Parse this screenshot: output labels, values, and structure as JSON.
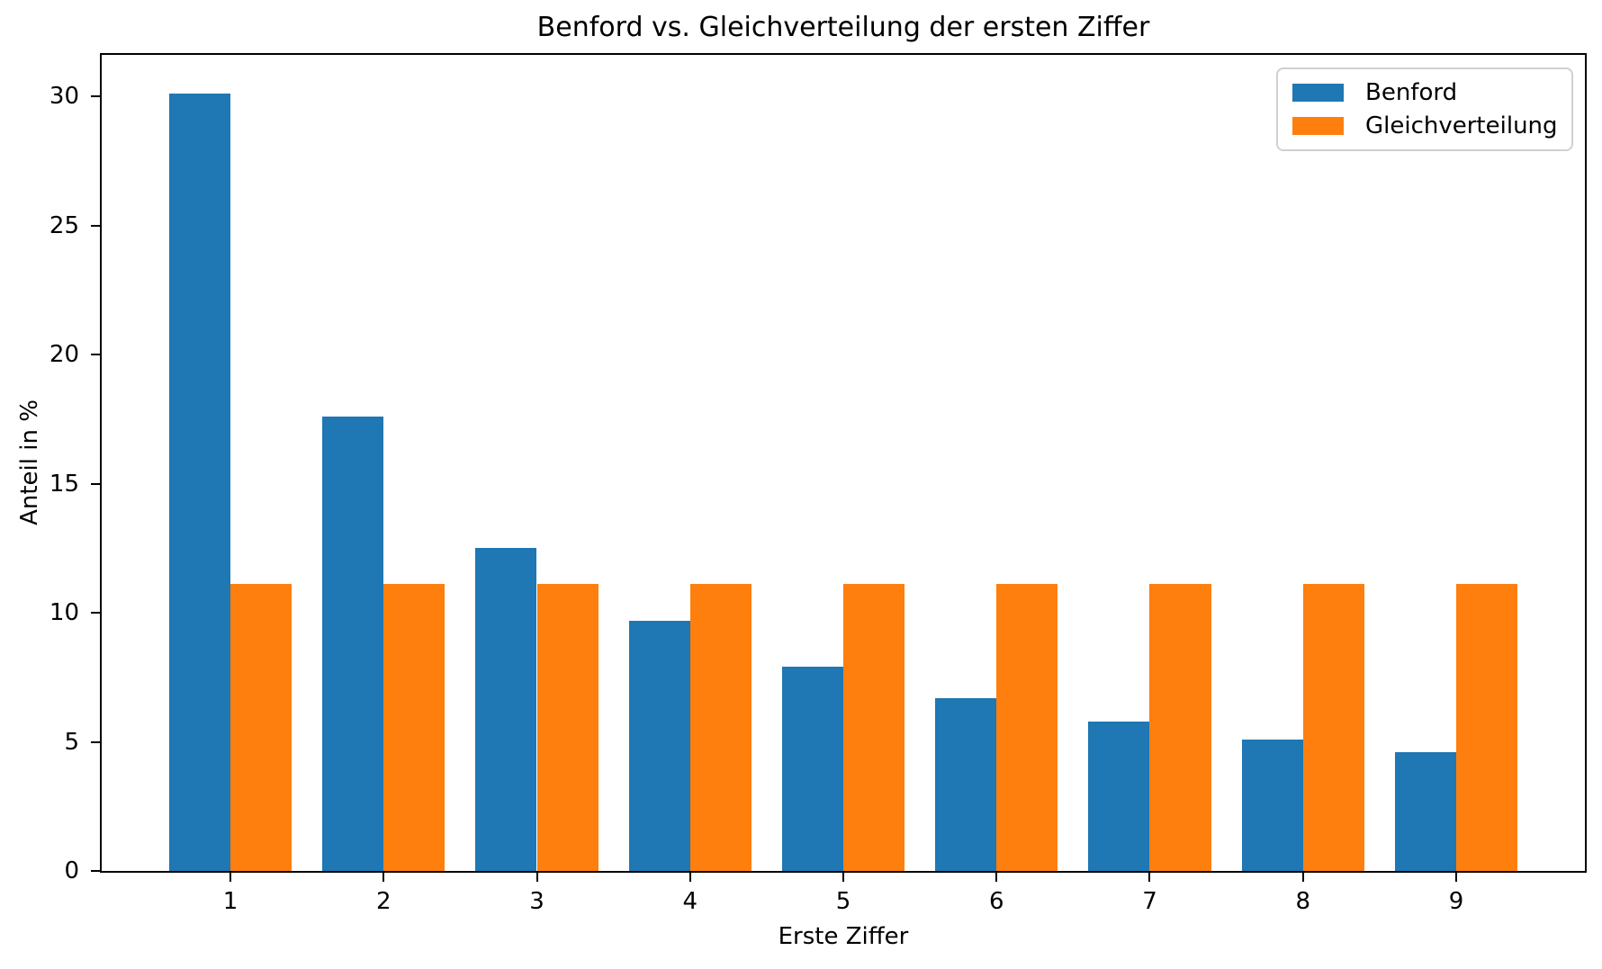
{
  "chart_data": {
    "type": "bar",
    "title": "Benford vs. Gleichverteilung der ersten Ziffer",
    "xlabel": "Erste Ziffer",
    "ylabel": "Anteil in %",
    "categories": [
      "1",
      "2",
      "3",
      "4",
      "5",
      "6",
      "7",
      "8",
      "9"
    ],
    "series": [
      {
        "name": "Benford",
        "color": "#1f77b4",
        "values": [
          30.1,
          17.6,
          12.5,
          9.7,
          7.9,
          6.7,
          5.8,
          5.1,
          4.6
        ]
      },
      {
        "name": "Gleichverteilung",
        "color": "#ff7f0e",
        "values": [
          11.11,
          11.11,
          11.11,
          11.11,
          11.11,
          11.11,
          11.11,
          11.11,
          11.11
        ]
      }
    ],
    "yticks": [
      0,
      5,
      10,
      15,
      20,
      25,
      30
    ],
    "ylim": [
      0,
      31.61
    ],
    "bar_width": 0.4,
    "grid": false,
    "legend_position": "upper right",
    "axis_color": "#000000",
    "background_color": "#ffffff"
  }
}
